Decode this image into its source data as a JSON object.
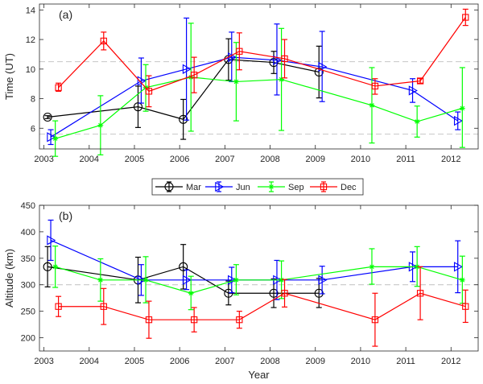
{
  "chart_data": [
    {
      "type": "line",
      "panel_label": "(a)",
      "title": "",
      "xlabel": "",
      "ylabel": "Time (UT)",
      "xlim": [
        2002.9,
        2012.6
      ],
      "ylim": [
        4.6,
        14.4
      ],
      "xticks": [
        2003,
        2004,
        2005,
        2006,
        2007,
        2008,
        2009,
        2010,
        2011,
        2012
      ],
      "xtick_labels": [
        "2003",
        "2004",
        "2005",
        "2006",
        "2007",
        "2008",
        "2009",
        "2010",
        "2011",
        "2012"
      ],
      "yticks": [
        6,
        8,
        10,
        12,
        14
      ],
      "ytick_labels": [
        "6",
        "8",
        "10",
        "12",
        "14"
      ],
      "reference_lines": [
        10.5,
        5.6
      ],
      "grid": false,
      "series": [
        {
          "name": "Mar",
          "color": "#000000",
          "marker": "circle",
          "offset": 0.08,
          "x": [
            2003,
            2005,
            2006,
            2007,
            2008,
            2009
          ],
          "y": [
            6.75,
            7.45,
            6.6,
            10.65,
            10.45,
            9.8
          ],
          "err_low": [
            6.65,
            6.05,
            5.25,
            9.25,
            9.7,
            8.05
          ],
          "err_high": [
            6.85,
            8.85,
            7.95,
            12.05,
            11.2,
            11.55
          ]
        },
        {
          "name": "Jun",
          "color": "#0000ff",
          "marker": "triangle-right",
          "offset": 0.15,
          "x": [
            2003,
            2005,
            2006,
            2007,
            2008,
            2009,
            2011,
            2012
          ],
          "y": [
            5.4,
            9.2,
            10.0,
            10.8,
            10.6,
            10.15,
            8.55,
            6.5
          ],
          "err_low": [
            4.9,
            7.7,
            6.55,
            9.15,
            8.25,
            7.8,
            7.75,
            5.9
          ],
          "err_high": [
            5.9,
            10.75,
            13.45,
            12.5,
            13.05,
            12.55,
            9.35,
            7.1
          ]
        },
        {
          "name": "Sep",
          "color": "#00ff00",
          "marker": "asterisk",
          "offset": 0.25,
          "x": [
            2003,
            2004,
            2005,
            2006,
            2007,
            2008,
            2010,
            2011,
            2012
          ],
          "y": [
            5.3,
            6.2,
            8.75,
            9.45,
            9.15,
            9.3,
            7.55,
            6.45,
            7.35
          ],
          "err_low": [
            4.1,
            4.2,
            7.15,
            5.8,
            6.5,
            5.85,
            5.0,
            5.4,
            4.7
          ],
          "err_high": [
            6.5,
            8.2,
            10.3,
            13.1,
            11.8,
            12.75,
            10.1,
            7.5,
            10.1
          ]
        },
        {
          "name": "Dec",
          "color": "#ff0000",
          "marker": "square",
          "offset": 0.32,
          "x": [
            2003,
            2004,
            2005,
            2006,
            2007,
            2008,
            2010,
            2011,
            2012
          ],
          "y": [
            8.75,
            11.9,
            8.5,
            9.6,
            11.2,
            10.7,
            8.85,
            9.2,
            13.5
          ],
          "err_low": [
            8.5,
            11.3,
            7.45,
            8.4,
            9.95,
            9.4,
            8.3,
            9.05,
            12.95
          ],
          "err_high": [
            9.05,
            12.5,
            9.55,
            10.8,
            12.45,
            12.0,
            9.35,
            9.35,
            14.05
          ]
        }
      ]
    },
    {
      "type": "line",
      "panel_label": "(b)",
      "title": "",
      "xlabel": "Year",
      "ylabel": "Altitude (km)",
      "xlim": [
        2002.9,
        2012.6
      ],
      "ylim": [
        175,
        450
      ],
      "xticks": [
        2003,
        2004,
        2005,
        2006,
        2007,
        2008,
        2009,
        2010,
        2011,
        2012
      ],
      "xtick_labels": [
        "2003",
        "2004",
        "2005",
        "2006",
        "2007",
        "2008",
        "2009",
        "2010",
        "2011",
        "2012"
      ],
      "yticks": [
        200,
        250,
        300,
        350,
        400,
        450
      ],
      "ytick_labels": [
        "200",
        "250",
        "300",
        "350",
        "400",
        "450"
      ],
      "reference_lines": [
        300
      ],
      "grid": false,
      "series": [
        {
          "name": "Mar",
          "color": "#000000",
          "marker": "circle",
          "offset": 0.08,
          "x": [
            2003,
            2005,
            2006,
            2007,
            2008,
            2009
          ],
          "y": [
            334,
            309,
            334,
            284,
            284,
            284
          ],
          "err_low": [
            296,
            266,
            292,
            262,
            257,
            257
          ],
          "err_high": [
            372,
            352,
            376,
            307,
            311,
            312
          ]
        },
        {
          "name": "Jun",
          "color": "#0000ff",
          "marker": "triangle-right",
          "offset": 0.15,
          "x": [
            2003,
            2005,
            2006,
            2007,
            2008,
            2009,
            2011,
            2012
          ],
          "y": [
            384,
            309,
            309,
            309,
            309,
            309,
            334,
            334
          ],
          "err_low": [
            346,
            280,
            291,
            285,
            272,
            283,
            306,
            285
          ],
          "err_high": [
            422,
            338,
            328,
            333,
            346,
            335,
            362,
            383
          ]
        },
        {
          "name": "Sep",
          "color": "#00ff00",
          "marker": "asterisk",
          "offset": 0.25,
          "x": [
            2003,
            2004,
            2005,
            2006,
            2007,
            2008,
            2010,
            2011,
            2012
          ],
          "y": [
            334,
            309,
            309,
            284,
            309,
            309,
            334,
            334,
            309
          ],
          "err_low": [
            295,
            269,
            266,
            253,
            281,
            274,
            301,
            297,
            265
          ],
          "err_high": [
            373,
            349,
            353,
            316,
            338,
            345,
            368,
            372,
            354
          ]
        },
        {
          "name": "Dec",
          "color": "#ff0000",
          "marker": "square",
          "offset": 0.32,
          "x": [
            2003,
            2004,
            2005,
            2006,
            2007,
            2008,
            2010,
            2011,
            2012
          ],
          "y": [
            259,
            259,
            234,
            234,
            234,
            284,
            234,
            284,
            259
          ],
          "err_low": [
            240,
            225,
            199,
            211,
            218,
            258,
            184,
            234,
            229
          ],
          "err_high": [
            278,
            293,
            269,
            257,
            250,
            310,
            284,
            334,
            290
          ]
        }
      ]
    }
  ],
  "legend": {
    "placement": "between-panels-center",
    "orientation": "horizontal",
    "entries": [
      "Mar",
      "Jun",
      "Sep",
      "Dec"
    ]
  }
}
